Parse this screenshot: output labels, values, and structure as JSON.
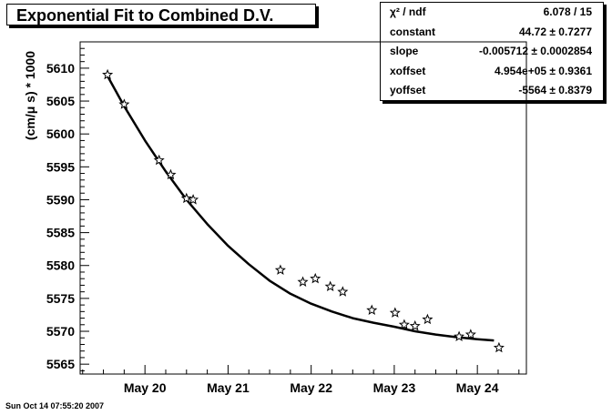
{
  "title": "Exponential Fit to Combined D.V.",
  "stats": [
    {
      "name": "χ² / ndf",
      "value": "6.078 / 15"
    },
    {
      "name": "constant",
      "value": "44.72 ± 0.7277"
    },
    {
      "name": "slope",
      "value": "-0.005712 ± 0.0002854"
    },
    {
      "name": "xoffset",
      "value": "4.954e+05 ± 0.9361"
    },
    {
      "name": "yoffset",
      "value": "-5564 ± 0.8379"
    }
  ],
  "footer": "Sun Oct 14 07:55:20 2007",
  "chart_data": {
    "type": "scatter",
    "title": "Exponential Fit to Combined D.V.",
    "xlabel": "",
    "ylabel": "(cm/μ s) * 1000",
    "x_ticks": [
      "May 20",
      "May 21",
      "May 22",
      "May 23",
      "May 24"
    ],
    "y_ticks": [
      5565,
      5570,
      5575,
      5580,
      5585,
      5590,
      5595,
      5600,
      5605,
      5610
    ],
    "xlim": [
      "May 19.22",
      "May 24.59"
    ],
    "ylim": [
      5563.5,
      5614.0
    ],
    "grid": false,
    "marker": "open-star",
    "series": [
      {
        "type": "scatter",
        "x": [
          "May 19.55",
          "May 19.75",
          "May 20.17",
          "May 20.31",
          "May 20.50",
          "May 20.58",
          "May 21.63",
          "May 21.90",
          "May 22.05",
          "May 22.23",
          "May 22.38",
          "May 22.73",
          "May 23.01",
          "May 23.12",
          "May 23.25",
          "May 23.40",
          "May 23.78",
          "May 23.92",
          "May 24.26"
        ],
        "y": [
          5609.0,
          5604.5,
          5596.0,
          5593.8,
          5590.2,
          5590.0,
          5579.3,
          5577.5,
          5578.0,
          5576.8,
          5576.0,
          5573.2,
          5572.8,
          5571.0,
          5570.8,
          5571.8,
          5569.2,
          5569.5,
          5567.5
        ]
      },
      {
        "type": "line",
        "x": [
          "May 19.55",
          "May 19.75",
          "May 20.00",
          "May 20.25",
          "May 20.50",
          "May 20.75",
          "May 21.00",
          "May 21.25",
          "May 21.50",
          "May 21.75",
          "May 22.00",
          "May 22.25",
          "May 22.50",
          "May 22.75",
          "May 23.00",
          "May 23.25",
          "May 23.50",
          "May 23.75",
          "May 24.00",
          "May 24.20"
        ],
        "y": [
          5608.8,
          5604.2,
          5599.0,
          5594.3,
          5590.0,
          5586.3,
          5583.0,
          5580.2,
          5577.7,
          5575.7,
          5574.2,
          5573.0,
          5572.0,
          5571.3,
          5570.7,
          5570.0,
          5569.5,
          5569.1,
          5568.8,
          5568.6
        ]
      }
    ]
  }
}
